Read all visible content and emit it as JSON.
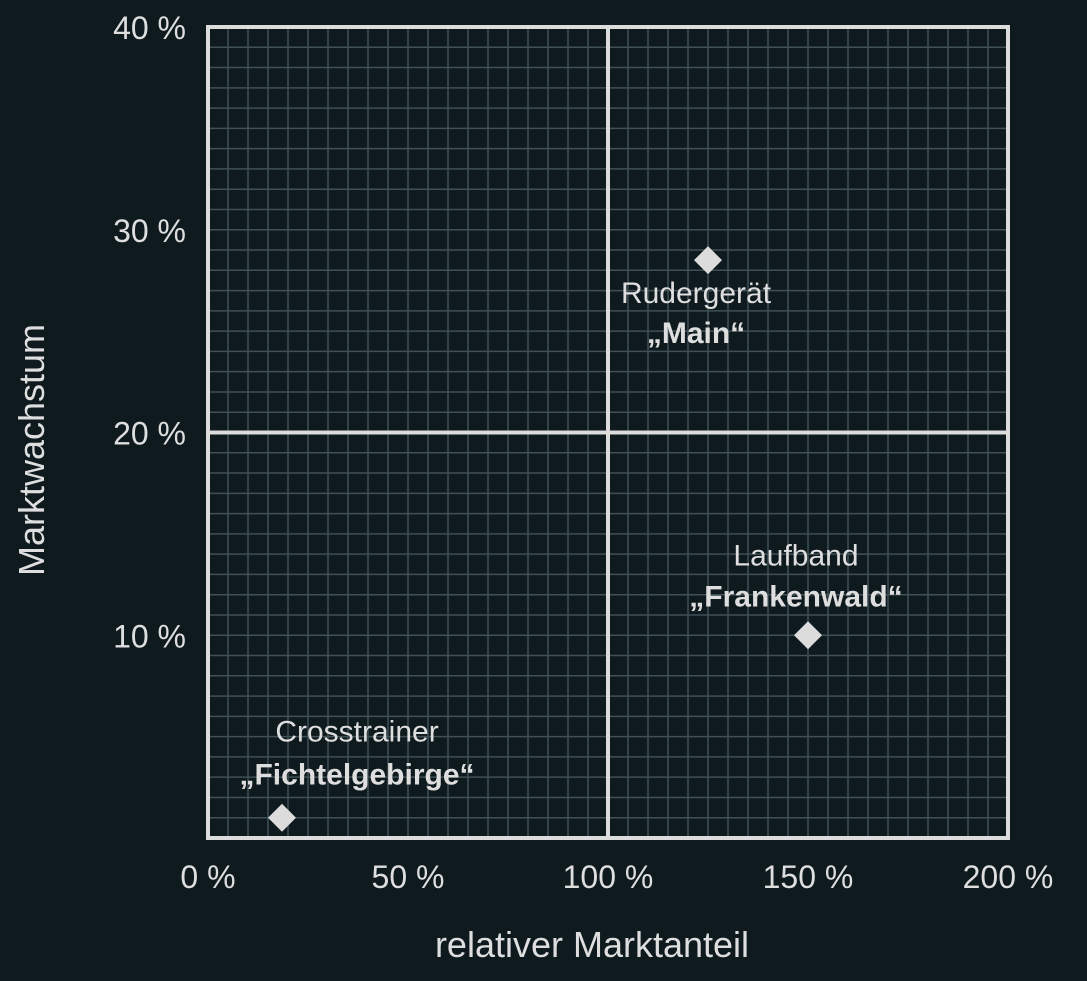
{
  "chart_data": {
    "type": "scatter",
    "title": "",
    "xlabel": "relativer Marktanteil",
    "ylabel": "Marktwachstum",
    "xlim": [
      0,
      200
    ],
    "ylim": [
      0,
      40
    ],
    "x_ticks": [
      {
        "value": 0,
        "label": "0 %"
      },
      {
        "value": 50,
        "label": "50 %"
      },
      {
        "value": 100,
        "label": "100 %"
      },
      {
        "value": 150,
        "label": "150 %"
      },
      {
        "value": 200,
        "label": "200 %"
      }
    ],
    "y_ticks": [
      {
        "value": 10,
        "label": "10 %"
      },
      {
        "value": 20,
        "label": "20 %"
      },
      {
        "value": 30,
        "label": "30 %"
      },
      {
        "value": 40,
        "label": "40 %"
      }
    ],
    "quadrant_dividers": {
      "x": 100,
      "y": 20
    },
    "grid": true,
    "points": [
      {
        "name": "Rudergerät",
        "product": "„Main“",
        "x": 125,
        "y": 28.5
      },
      {
        "name": "Laufband",
        "product": "„Frankenwald“",
        "x": 150,
        "y": 10
      },
      {
        "name": "Crosstrainer",
        "product": "„Fichtelgebirge“",
        "x": 18.5,
        "y": 1
      }
    ]
  },
  "colors": {
    "background": "#0e1a1e",
    "grid": "#3f5056",
    "frame": "#dcdcdc",
    "text": "#dedede",
    "marker": "#dcdcdc"
  }
}
